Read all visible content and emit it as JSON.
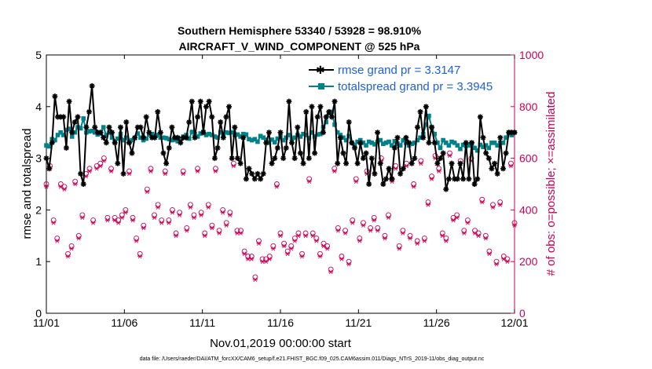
{
  "chart_data": {
    "type": "line",
    "title_line1": "Southern Hemisphere 53340 / 53928 = 98.910%",
    "title_line2": "AIRCRAFT_V_WIND_COMPONENT @ 525 hPa",
    "xlabel": "Nov.01,2019 00:00:00 start",
    "ylabel_left": "rmse and totalspread",
    "ylabel_right": "# of obs: o=possible; ×=assimilated",
    "footnote": "data file: /Users/raeder/DAI/ATM_forcXX/CAM6_setup/f.e21.FHIST_BGC.f09_025.CAM6assim.011/Diags_NTrS_2019-11/obs_diag_output.nc",
    "xlim": [
      0,
      30
    ],
    "ylim_left": [
      0,
      5
    ],
    "ylim_right": [
      0,
      1000
    ],
    "x_tick_labels": [
      "11/01",
      "11/06",
      "11/11",
      "11/16",
      "11/21",
      "11/26",
      "12/01"
    ],
    "x_tick_values": [
      0,
      5,
      10,
      15,
      20,
      25,
      30
    ],
    "y_left_ticks": [
      "0",
      "1",
      "2",
      "3",
      "4",
      "5"
    ],
    "y_right_ticks": [
      "0",
      "200",
      "400",
      "600",
      "800",
      "1000"
    ],
    "colors": {
      "rmse": "#000000",
      "spread": "#00828a",
      "obs": "#cc0055",
      "legend_text": "#1f5fe0"
    },
    "series": [
      {
        "name": "rmse grand pr = 3.3147",
        "key": "rmse",
        "values": [
          3.0,
          2.8,
          3.3,
          4.2,
          3.8,
          3.8,
          3.8,
          3.2,
          4.1,
          3.5,
          3.7,
          3.8,
          2.7,
          2.5,
          3.6,
          3.9,
          4.4,
          3.6,
          3.5,
          3.5,
          3.4,
          3.3,
          3.6,
          3.5,
          3.3,
          2.9,
          3.6,
          2.7,
          3.7,
          3.3,
          3.1,
          3.4,
          3.6,
          3.6,
          3.4,
          3.8,
          3.5,
          3.4,
          3.4,
          3.9,
          3.5,
          3.1,
          2.9,
          3.2,
          3.6,
          3.4,
          3.4,
          3.3,
          3.4,
          3.4,
          3.7,
          4.1,
          3.4,
          3.8,
          4.1,
          3.5,
          4.0,
          4.1,
          3.8,
          3.0,
          3.2,
          3.7,
          3.4,
          3.8,
          4.0,
          3.0,
          3.6,
          3.0,
          2.9,
          3.4,
          2.6,
          2.8,
          2.7,
          2.6,
          2.7,
          2.6,
          2.7,
          3.3,
          3.5,
          2.9,
          3.0,
          3.2,
          3.5,
          3.0,
          3.2,
          4.1,
          3.3,
          3.0,
          3.6,
          3.1,
          2.9,
          3.9,
          3.0,
          4.0,
          3.1,
          3.8,
          4.0,
          3.5,
          3.8,
          3.9,
          3.8,
          4.1,
          2.9,
          3.4,
          3.1,
          2.9,
          3.7,
          3.3,
          3.2,
          2.9,
          3.3,
          3.0,
          3.1,
          2.5,
          3.0,
          2.7,
          3.5,
          2.9,
          2.5,
          2.6,
          2.8,
          2.6,
          3.2,
          3.4,
          2.7,
          2.8,
          3.4,
          3.3,
          2.9,
          3.0,
          3.6,
          3.9,
          3.4,
          4.0,
          3.3,
          3.6,
          3.3,
          2.9,
          3.0,
          3.1,
          2.4,
          2.6,
          2.9,
          2.6,
          2.6,
          2.9,
          2.6,
          3.3,
          2.6,
          3.3,
          2.5,
          2.6,
          3.8,
          3.4,
          3.1,
          3.0,
          2.8,
          2.9,
          2.7,
          3.4,
          2.8,
          3.1,
          3.5,
          3.5,
          3.5
        ]
      },
      {
        "name": "totalspread grand pr = 3.3945",
        "key": "spread",
        "values": [
          3.25,
          3.23,
          3.37,
          3.35,
          3.45,
          3.5,
          3.45,
          3.55,
          3.57,
          3.42,
          3.5,
          3.6,
          3.58,
          3.77,
          3.5,
          3.52,
          3.53,
          3.5,
          3.46,
          3.48,
          3.6,
          3.45,
          3.5,
          3.4,
          3.33,
          3.38,
          3.47,
          3.35,
          3.4,
          3.32,
          3.35,
          3.39,
          3.48,
          3.4,
          3.35,
          3.38,
          3.46,
          3.47,
          3.43,
          3.45,
          3.4,
          3.4,
          3.39,
          3.37,
          3.35,
          3.36,
          3.33,
          3.38,
          3.42,
          3.45,
          3.38,
          3.51,
          3.47,
          3.42,
          3.48,
          3.51,
          3.45,
          3.47,
          3.45,
          3.42,
          3.4,
          3.5,
          3.45,
          3.5,
          3.49,
          3.5,
          3.45,
          3.46,
          3.42,
          3.47,
          3.46,
          3.37,
          3.35,
          3.37,
          3.32,
          3.43,
          3.4,
          3.36,
          3.3,
          3.36,
          3.31,
          3.38,
          3.42,
          3.35,
          3.4,
          3.45,
          3.37,
          3.4,
          3.45,
          3.42,
          3.47,
          3.45,
          3.39,
          3.5,
          3.42,
          3.46,
          3.47,
          3.6,
          3.7,
          3.87,
          3.9,
          3.65,
          3.5,
          3.45,
          3.4,
          3.35,
          3.43,
          3.3,
          3.25,
          3.32,
          3.35,
          3.3,
          3.25,
          3.32,
          3.3,
          3.27,
          3.32,
          3.35,
          3.28,
          3.3,
          3.32,
          3.25,
          3.33,
          3.28,
          3.25,
          3.35,
          3.3,
          3.25,
          3.28,
          3.3,
          3.35,
          3.4,
          3.47,
          3.65,
          3.82,
          3.6,
          3.47,
          3.3,
          3.2,
          3.35,
          3.3,
          3.25,
          3.32,
          3.3,
          3.25,
          3.18,
          3.26,
          3.24,
          3.25,
          3.3,
          3.2,
          3.15,
          3.26,
          3.22,
          3.25,
          3.2,
          3.3,
          3.3,
          3.25,
          3.3,
          3.3,
          3.4,
          3.5,
          3.45,
          3.5
        ]
      },
      {
        "name": "possible",
        "key": "possible",
        "values": [
          500,
          570,
          360,
          290,
          500,
          490,
          230,
          260,
          510,
          300,
          380,
          540,
          560,
          360,
          570,
          580,
          600,
          370,
          560,
          370,
          360,
          380,
          400,
          550,
          370,
          290,
          230,
          340,
          480,
          560,
          380,
          420,
          360,
          550,
          360,
          400,
          310,
          390,
          550,
          330,
          420,
          380,
          560,
          390,
          310,
          420,
          340,
          560,
          320,
          400,
          350,
          390,
          580,
          320,
          320,
          240,
          220,
          220,
          140,
          280,
          210,
          210,
          220,
          260,
          500,
          310,
          270,
          240,
          260,
          290,
          310,
          230,
          310,
          520,
          310,
          290,
          230,
          270,
          260,
          170,
          560,
          330,
          220,
          320,
          200,
          360,
          520,
          290,
          350,
          550,
          330,
          370,
          330,
          600,
          300,
          380,
          520,
          570,
          260,
          320,
          580,
          300,
          500,
          280,
          590,
          290,
          430,
          530,
          610,
          560,
          310,
          290,
          620,
          370,
          380,
          590,
          320,
          360,
          600,
          320,
          310,
          440,
          300,
          240,
          420,
          200,
          430,
          220,
          210,
          580,
          350
        ]
      },
      {
        "name": "assimilated",
        "key": "assimilated",
        "values": [
          490,
          560,
          350,
          280,
          490,
          480,
          220,
          250,
          500,
          290,
          370,
          530,
          550,
          350,
          560,
          570,
          590,
          360,
          550,
          360,
          350,
          370,
          390,
          540,
          360,
          280,
          220,
          330,
          470,
          550,
          370,
          410,
          350,
          540,
          350,
          390,
          300,
          380,
          540,
          320,
          410,
          370,
          550,
          380,
          300,
          410,
          330,
          550,
          310,
          390,
          340,
          380,
          570,
          310,
          310,
          230,
          210,
          210,
          130,
          270,
          200,
          200,
          210,
          250,
          490,
          300,
          260,
          230,
          250,
          280,
          300,
          220,
          300,
          510,
          300,
          280,
          220,
          260,
          250,
          160,
          550,
          320,
          210,
          310,
          190,
          350,
          510,
          280,
          340,
          540,
          320,
          360,
          320,
          590,
          290,
          370,
          510,
          560,
          250,
          310,
          570,
          290,
          490,
          270,
          580,
          280,
          420,
          520,
          600,
          550,
          300,
          280,
          610,
          360,
          370,
          580,
          310,
          350,
          590,
          310,
          300,
          430,
          290,
          230,
          410,
          190,
          420,
          210,
          200,
          570,
          340
        ]
      }
    ]
  }
}
